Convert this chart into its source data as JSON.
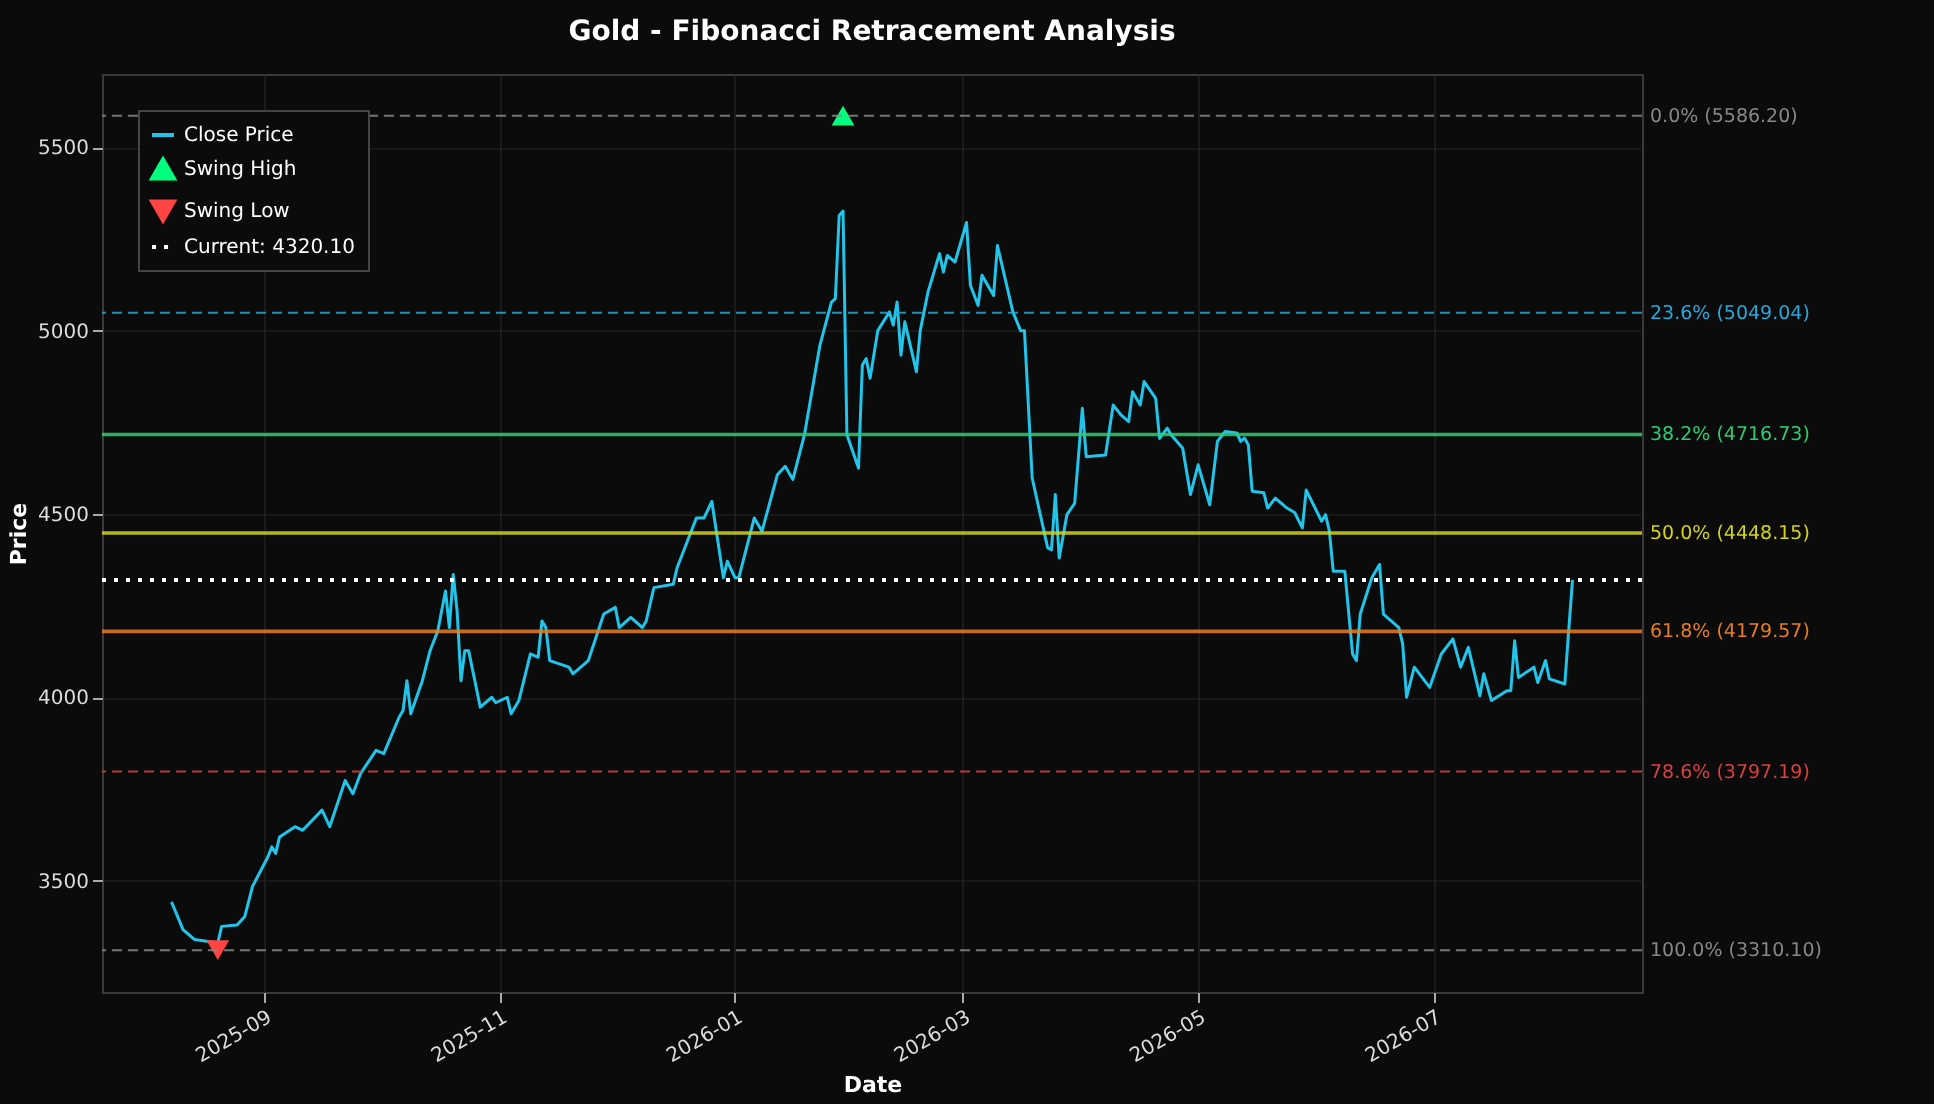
{
  "chart_data": {
    "type": "line",
    "title": "Gold - Fibonacci Retracement Analysis",
    "xlabel": "Date",
    "ylabel": "Price",
    "xlim": [
      "2025-07-21",
      "2026-08-24"
    ],
    "xticks": [
      "2025-09",
      "2025-11",
      "2026-01",
      "2026-03",
      "2026-05",
      "2026-07"
    ],
    "ylim": [
      3196,
      5700
    ],
    "yticks": [
      3500,
      4000,
      4500,
      5000,
      5500
    ],
    "grid": true,
    "legend": "top left",
    "series": [
      {
        "name": "Close Price",
        "color": "#22c5ea",
        "x": [
          "2025-08-08",
          "2025-08-11",
          "2025-08-14",
          "2025-08-20",
          "2025-08-21",
          "2025-08-25",
          "2025-08-27",
          "2025-08-29",
          "2025-09-02",
          "2025-09-03",
          "2025-09-04",
          "2025-09-05",
          "2025-09-09",
          "2025-09-11",
          "2025-09-16",
          "2025-09-18",
          "2025-09-22",
          "2025-09-24",
          "2025-09-26",
          "2025-09-30",
          "2025-10-02",
          "2025-10-06",
          "2025-10-07",
          "2025-10-08",
          "2025-10-09",
          "2025-10-12",
          "2025-10-14",
          "2025-10-16",
          "2025-10-17",
          "2025-10-18",
          "2025-10-19",
          "2025-10-20",
          "2025-10-21",
          "2025-10-22",
          "2025-10-23",
          "2025-10-24",
          "2025-10-27",
          "2025-10-30",
          "2025-10-31",
          "2025-11-03",
          "2025-11-04",
          "2025-11-06",
          "2025-11-09",
          "2025-11-11",
          "2025-11-12",
          "2025-11-13",
          "2025-11-14",
          "2025-11-19",
          "2025-11-20",
          "2025-11-24",
          "2025-11-28",
          "2025-12-01",
          "2025-12-02",
          "2025-12-05",
          "2025-12-08",
          "2025-12-09",
          "2025-12-11",
          "2025-12-16",
          "2025-12-17",
          "2025-12-22",
          "2025-12-24",
          "2025-12-26",
          "2025-12-29",
          "2025-12-30",
          "2026-01-01",
          "2026-01-02",
          "2026-01-06",
          "2026-01-08",
          "2026-01-12",
          "2026-01-14",
          "2026-01-16",
          "2026-01-19",
          "2026-01-23",
          "2026-01-26",
          "2026-01-27",
          "2026-01-28",
          "2026-01-29",
          "2026-01-30",
          "2026-02-02",
          "2026-02-03",
          "2026-02-04",
          "2026-02-05",
          "2026-02-07",
          "2026-02-10",
          "2026-02-11",
          "2026-02-12",
          "2026-02-13",
          "2026-02-14",
          "2026-02-17",
          "2026-02-18",
          "2026-02-20",
          "2026-02-23",
          "2026-02-24",
          "2026-02-25",
          "2026-02-27",
          "2026-03-02",
          "2026-03-03",
          "2026-03-05",
          "2026-03-06",
          "2026-03-09",
          "2026-03-10",
          "2026-03-14",
          "2026-03-16",
          "2026-03-17",
          "2026-03-19",
          "2026-03-23",
          "2026-03-24",
          "2026-03-25",
          "2026-03-26",
          "2026-03-28",
          "2026-03-30",
          "2026-04-01",
          "2026-04-02",
          "2026-04-07",
          "2026-04-09",
          "2026-04-11",
          "2026-04-13",
          "2026-04-14",
          "2026-04-16",
          "2026-04-17",
          "2026-04-20",
          "2026-04-21",
          "2026-04-23",
          "2026-04-24",
          "2026-04-27",
          "2026-04-29",
          "2026-05-01",
          "2026-05-04",
          "2026-05-06",
          "2026-05-08",
          "2026-05-11",
          "2026-05-12",
          "2026-05-13",
          "2026-05-14",
          "2026-05-15",
          "2026-05-18",
          "2026-05-19",
          "2026-05-21",
          "2026-05-24",
          "2026-05-26",
          "2026-05-28",
          "2026-05-29",
          "2026-06-02",
          "2026-06-03",
          "2026-06-04",
          "2026-06-05",
          "2026-06-08",
          "2026-06-10",
          "2026-06-11",
          "2026-06-12",
          "2026-06-15",
          "2026-06-17",
          "2026-06-18",
          "2026-06-22",
          "2026-06-23",
          "2026-06-24",
          "2026-06-26",
          "2026-06-30",
          "2026-07-03",
          "2026-07-06",
          "2026-07-08",
          "2026-07-10",
          "2026-07-13",
          "2026-07-14",
          "2026-07-16",
          "2026-07-20",
          "2026-07-21",
          "2026-07-22",
          "2026-07-23",
          "2026-07-27",
          "2026-07-28",
          "2026-07-30",
          "2026-07-31",
          "2026-08-04",
          "2026-08-05",
          "2026-08-06"
        ],
        "values": [
          3442,
          3366,
          3339,
          3330,
          3375,
          3379,
          3402,
          3484,
          3565,
          3592,
          3574,
          3619,
          3647,
          3637,
          3692,
          3647,
          3773,
          3737,
          3792,
          3855,
          3846,
          3946,
          3964,
          4045,
          3955,
          4045,
          4127,
          4181,
          4236,
          4290,
          4190,
          4335,
          4236,
          4045,
          4127,
          4127,
          3973,
          4000,
          3985,
          4000,
          3955,
          3991,
          4118,
          4109,
          4208,
          4190,
          4100,
          4082,
          4064,
          4100,
          4227,
          4245,
          4190,
          4218,
          4190,
          4208,
          4299,
          4308,
          4353,
          4489,
          4489,
          4534,
          4326,
          4371,
          4326,
          4326,
          4489,
          4453,
          4607,
          4630,
          4594,
          4716,
          4960,
          5078,
          5087,
          5314,
          5326,
          4716,
          4625,
          4906,
          4924,
          4870,
          5000,
          5051,
          5015,
          5078,
          4933,
          5024,
          4888,
          5000,
          5105,
          5210,
          5160,
          5205,
          5187,
          5295,
          5123,
          5069,
          5151,
          5096,
          5232,
          5051,
          5000,
          5000,
          4598,
          4408,
          4402,
          4553,
          4380,
          4498,
          4529,
          4788,
          4656,
          4661,
          4797,
          4770,
          4752,
          4833,
          4797,
          4861,
          4815,
          4706,
          4734,
          4716,
          4679,
          4553,
          4634,
          4525,
          4698,
          4725,
          4721,
          4698,
          4707,
          4689,
          4562,
          4558,
          4516,
          4543,
          4516,
          4504,
          4462,
          4565,
          4480,
          4498,
          4453,
          4344,
          4344,
          4118,
          4100,
          4227,
          4326,
          4362,
          4227,
          4190,
          4145,
          4000,
          4082,
          4027,
          4118,
          4159,
          4082,
          4136,
          4004,
          4064,
          3991,
          4018,
          4018,
          4154,
          4054,
          4082,
          4040,
          4100,
          4050,
          4036,
          4181,
          4320.1
        ]
      },
      {
        "name": "Swing High",
        "type": "scatter",
        "marker": "triangle",
        "color": "#00ff7f",
        "x": [
          "2026-01-29"
        ],
        "values": [
          5586.2
        ]
      },
      {
        "name": "Swing Low",
        "type": "scatter",
        "marker": "triangle-down",
        "color": "#ff4444",
        "x": [
          "2025-08-20"
        ],
        "values": [
          3310.1
        ]
      }
    ],
    "ref_lines": [
      {
        "axis": "y",
        "value": 5586.2,
        "label": "0.0% (5586.20)",
        "color": "#888888",
        "line_style": "dashed"
      },
      {
        "axis": "y",
        "value": 5049.04,
        "label": "23.6% (5049.04)",
        "color": "#29a9d9",
        "line_style": "dashed"
      },
      {
        "axis": "y",
        "value": 4716.73,
        "label": "38.2% (4716.73)",
        "color": "#2ecc71",
        "line_style": "solid"
      },
      {
        "axis": "y",
        "value": 4448.15,
        "label": "50.0% (4448.15)",
        "color": "#d4d41c",
        "line_style": "solid"
      },
      {
        "axis": "y",
        "value": 4320.1,
        "label": "Current: 4320.10",
        "color": "#ffffff",
        "line_style": "dotted"
      },
      {
        "axis": "y",
        "value": 4179.57,
        "label": "61.8% (4179.57)",
        "color": "#e67e22",
        "line_style": "solid"
      },
      {
        "axis": "y",
        "value": 3797.19,
        "label": "78.6% (3797.19)",
        "color": "#d94040",
        "line_style": "dashed"
      },
      {
        "axis": "y",
        "value": 3310.1,
        "label": "100.0% (3310.10)",
        "color": "#888888",
        "line_style": "dashed"
      }
    ]
  }
}
